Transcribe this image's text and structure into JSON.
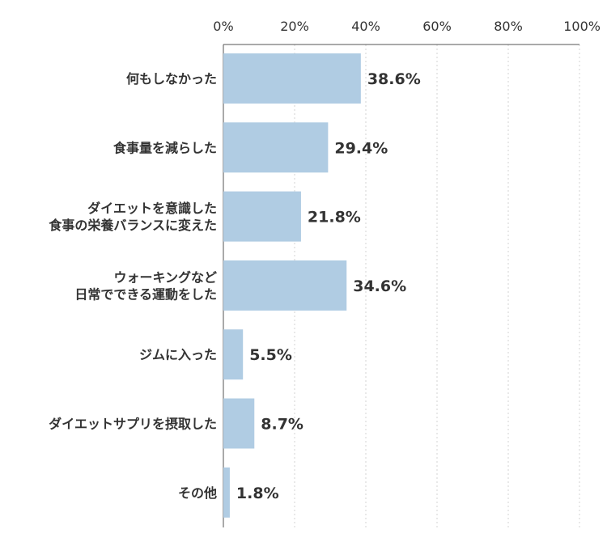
{
  "chart_data": {
    "type": "bar",
    "orientation": "horizontal",
    "categories": [
      [
        "何もしなかった"
      ],
      [
        "食事量を減らした"
      ],
      [
        "ダイエットを意識した",
        "食事の栄養バランスに変えた"
      ],
      [
        "ウォーキングなど",
        "日常でできる運動をした"
      ],
      [
        "ジムに入った"
      ],
      [
        "ダイエットサプリを摂取した"
      ],
      [
        "その他"
      ]
    ],
    "values": [
      38.6,
      29.4,
      21.8,
      34.6,
      5.5,
      8.7,
      1.8
    ],
    "value_labels": [
      "38.6%",
      "29.4%",
      "21.8%",
      "34.6%",
      "5.5%",
      "8.7%",
      "1.8%"
    ],
    "xticks": [
      0,
      20,
      40,
      60,
      80,
      100
    ],
    "xtick_labels": [
      "0%",
      "20%",
      "40%",
      "60%",
      "80%",
      "100%"
    ],
    "xlim": [
      0,
      100
    ],
    "axis_position": "top",
    "grid": true,
    "colors": {
      "bar": "#b0cce3",
      "axis": "#555555",
      "grid": "#e2e2e2",
      "text": "#333333"
    }
  }
}
